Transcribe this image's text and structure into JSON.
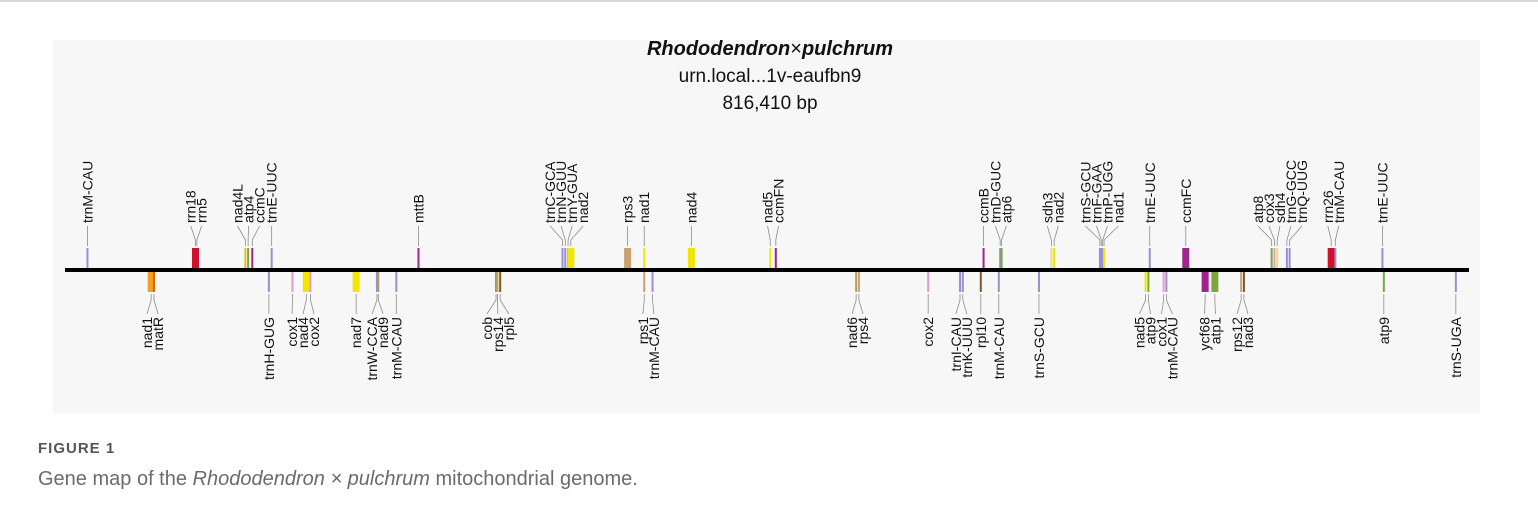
{
  "title": {
    "genus": "Rhododendron",
    "symbol": "×",
    "species": "pulchrum",
    "accession": "urn.local...1v-eaufbn9",
    "length": "816,410 bp"
  },
  "figure": {
    "label": "FIGURE 1",
    "caption_prefix": "Gene map of the ",
    "caption_italic": "Rhododendron × pulchrum",
    "caption_suffix": " mitochondrial genome."
  },
  "genes_top": [
    {
      "name": "trnM-CAU",
      "pos": 0.009,
      "color": "#9b8fd0",
      "kind": "trna"
    },
    {
      "name": "rrn18",
      "pos": 0.087,
      "color": "#d0112b",
      "kind": "block"
    },
    {
      "name": "rrn5",
      "pos": 0.088,
      "color": "#d0112b",
      "kind": "trna"
    },
    {
      "name": "nad4L",
      "pos": 0.123,
      "color": "#e0c020",
      "kind": "trna"
    },
    {
      "name": "atp4",
      "pos": 0.125,
      "color": "#7aa83b",
      "kind": "trna"
    },
    {
      "name": "ccmC",
      "pos": 0.128,
      "color": "#a0248a",
      "kind": "trna"
    },
    {
      "name": "trnE-UUC",
      "pos": 0.142,
      "color": "#9b8fd0",
      "kind": "trna"
    },
    {
      "name": "mttB",
      "pos": 0.248,
      "color": "#a0248a",
      "kind": "trna"
    },
    {
      "name": "trnC-GCA",
      "pos": 0.352,
      "color": "#9b8fd0",
      "kind": "trna"
    },
    {
      "name": "trnN-GUU",
      "pos": 0.354,
      "color": "#9b8fd0",
      "kind": "trna"
    },
    {
      "name": "trnY-GUA",
      "pos": 0.356,
      "color": "#9b8fd0",
      "kind": "trna"
    },
    {
      "name": "nad2",
      "pos": 0.358,
      "color": "#f2e600",
      "kind": "block"
    },
    {
      "name": "rps3",
      "pos": 0.399,
      "color": "#c9a070",
      "kind": "block"
    },
    {
      "name": "nad1",
      "pos": 0.411,
      "color": "#f2e600",
      "kind": "trna"
    },
    {
      "name": "nad4",
      "pos": 0.445,
      "color": "#f2e600",
      "kind": "block"
    },
    {
      "name": "nad5",
      "pos": 0.502,
      "color": "#f2e600",
      "kind": "trna"
    },
    {
      "name": "ccmFN",
      "pos": 0.506,
      "color": "#a0248a",
      "kind": "trna"
    },
    {
      "name": "ccmB",
      "pos": 0.656,
      "color": "#a0248a",
      "kind": "trna"
    },
    {
      "name": "trnD-GUC",
      "pos": 0.668,
      "color": "#9b8fd0",
      "kind": "trna"
    },
    {
      "name": "atp6",
      "pos": 0.669,
      "color": "#7aa83b",
      "kind": "trna"
    },
    {
      "name": "sdh3",
      "pos": 0.705,
      "color": "#e6e070",
      "kind": "trna"
    },
    {
      "name": "nad2",
      "pos": 0.707,
      "color": "#f2e600",
      "kind": "trna"
    },
    {
      "name": "trnS-GCU",
      "pos": 0.74,
      "color": "#9b8fd0",
      "kind": "trna"
    },
    {
      "name": "trnF-GAA",
      "pos": 0.741,
      "color": "#9b8fd0",
      "kind": "trna"
    },
    {
      "name": "trnP-UGG",
      "pos": 0.742,
      "color": "#9b8fd0",
      "kind": "trna"
    },
    {
      "name": "nad1",
      "pos": 0.743,
      "color": "#f2e600",
      "kind": "trna"
    },
    {
      "name": "trnE-UUC",
      "pos": 0.776,
      "color": "#9b8fd0",
      "kind": "trna"
    },
    {
      "name": "ccmFC",
      "pos": 0.802,
      "color": "#a0248a",
      "kind": "block"
    },
    {
      "name": "atp8",
      "pos": 0.864,
      "color": "#7aa83b",
      "kind": "trna"
    },
    {
      "name": "cox3",
      "pos": 0.866,
      "color": "#e29ad0",
      "kind": "trna"
    },
    {
      "name": "sdh4",
      "pos": 0.868,
      "color": "#e6e070",
      "kind": "trna"
    },
    {
      "name": "trnG-GCC",
      "pos": 0.875,
      "color": "#9b8fd0",
      "kind": "trna"
    },
    {
      "name": "trnQ-UUG",
      "pos": 0.877,
      "color": "#9b8fd0",
      "kind": "trna"
    },
    {
      "name": "rrn26",
      "pos": 0.907,
      "color": "#d0112b",
      "kind": "block"
    },
    {
      "name": "trnM-CAU",
      "pos": 0.91,
      "color": "#9b8fd0",
      "kind": "trna"
    },
    {
      "name": "trnE-UUC",
      "pos": 0.944,
      "color": "#9b8fd0",
      "kind": "trna"
    }
  ],
  "genes_bottom": [
    {
      "name": "nad1",
      "pos": 0.055,
      "color": "#f2a020",
      "kind": "block"
    },
    {
      "name": "matR",
      "pos": 0.057,
      "color": "#e06000",
      "kind": "trna"
    },
    {
      "name": "trnH-GUG",
      "pos": 0.14,
      "color": "#9b8fd0",
      "kind": "trna"
    },
    {
      "name": "cox1",
      "pos": 0.157,
      "color": "#e29ad0",
      "kind": "trna"
    },
    {
      "name": "nad4",
      "pos": 0.167,
      "color": "#f2e600",
      "kind": "block"
    },
    {
      "name": "cox2",
      "pos": 0.17,
      "color": "#e29ad0",
      "kind": "trna"
    },
    {
      "name": "nad7",
      "pos": 0.203,
      "color": "#f2e600",
      "kind": "block"
    },
    {
      "name": "trnW-CCA",
      "pos": 0.218,
      "color": "#9b8fd0",
      "kind": "trna"
    },
    {
      "name": "nad9",
      "pos": 0.219,
      "color": "#b0a060",
      "kind": "trna"
    },
    {
      "name": "trnM-CAU",
      "pos": 0.232,
      "color": "#9b8fd0",
      "kind": "trna"
    },
    {
      "name": "cob",
      "pos": 0.304,
      "color": "#7aa83b",
      "kind": "trna"
    },
    {
      "name": "rps14",
      "pos": 0.305,
      "color": "#c9a070",
      "kind": "trna"
    },
    {
      "name": "rpl5",
      "pos": 0.307,
      "color": "#7a5a2a",
      "kind": "trna"
    },
    {
      "name": "rps1",
      "pos": 0.411,
      "color": "#c9a070",
      "kind": "trna"
    },
    {
      "name": "trnM-CAU",
      "pos": 0.417,
      "color": "#9b8fd0",
      "kind": "trna"
    },
    {
      "name": "nad6",
      "pos": 0.564,
      "color": "#b0a060",
      "kind": "trna"
    },
    {
      "name": "rps4",
      "pos": 0.566,
      "color": "#c9a070",
      "kind": "trna"
    },
    {
      "name": "cox2",
      "pos": 0.616,
      "color": "#e29ad0",
      "kind": "trna"
    },
    {
      "name": "trnI-CAU",
      "pos": 0.639,
      "color": "#9b8fd0",
      "kind": "trna"
    },
    {
      "name": "trnK-UUU",
      "pos": 0.641,
      "color": "#9b8fd0",
      "kind": "trna"
    },
    {
      "name": "rpl10",
      "pos": 0.654,
      "color": "#7a5a2a",
      "kind": "trna"
    },
    {
      "name": "trnM-CAU",
      "pos": 0.667,
      "color": "#9b8fd0",
      "kind": "trna"
    },
    {
      "name": "trnS-GCU",
      "pos": 0.696,
      "color": "#9b8fd0",
      "kind": "trna"
    },
    {
      "name": "nad5",
      "pos": 0.773,
      "color": "#f2e600",
      "kind": "trna"
    },
    {
      "name": "atp9",
      "pos": 0.775,
      "color": "#7aa83b",
      "kind": "trna"
    },
    {
      "name": "cox1",
      "pos": 0.786,
      "color": "#e29ad0",
      "kind": "trna"
    },
    {
      "name": "trnM-CAU",
      "pos": 0.788,
      "color": "#9b8fd0",
      "kind": "trna"
    },
    {
      "name": "ycf68",
      "pos": 0.816,
      "color": "#a0248a",
      "kind": "block"
    },
    {
      "name": "atp1",
      "pos": 0.823,
      "color": "#7aa83b",
      "kind": "block"
    },
    {
      "name": "rps12",
      "pos": 0.842,
      "color": "#c9a070",
      "kind": "trna"
    },
    {
      "name": "nad3",
      "pos": 0.844,
      "color": "#7a5a2a",
      "kind": "trna"
    },
    {
      "name": "atp9",
      "pos": 0.945,
      "color": "#7aa83b",
      "kind": "trna"
    },
    {
      "name": "trnS-UGA",
      "pos": 0.997,
      "color": "#9b8fd0",
      "kind": "trna"
    }
  ]
}
